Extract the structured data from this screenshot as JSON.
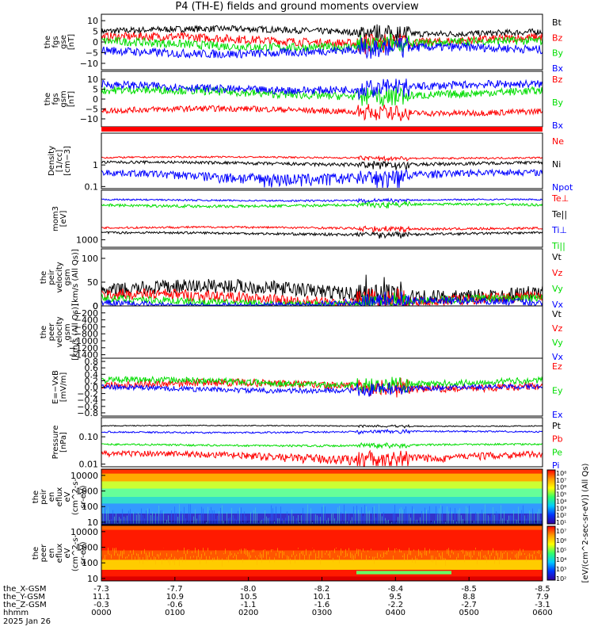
{
  "title": "P4 (TH-E) fields and ground moments overview",
  "colors": {
    "black": "#000000",
    "red": "#ff0000",
    "green": "#00dd00",
    "blue": "#0000ff"
  },
  "chart_data": [
    {
      "type": "line",
      "ylabel": [
        "the",
        "fgs",
        "gse",
        "[nT]"
      ],
      "ylim": [
        -13,
        13
      ],
      "ticks": [
        "10",
        "5",
        "0",
        "−5",
        "−10"
      ],
      "tick_values": [
        10,
        5,
        0,
        -5,
        -10
      ],
      "series": [
        {
          "name": "Bt",
          "color": "#000000",
          "level": 5,
          "noise": 1.5
        },
        {
          "name": "Bz",
          "color": "#ff0000",
          "level": 1,
          "noise": 2
        },
        {
          "name": "By",
          "color": "#00dd00",
          "level": -1,
          "noise": 2
        },
        {
          "name": "Bx",
          "color": "#0000ff",
          "level": -4,
          "noise": 2
        }
      ]
    },
    {
      "type": "line",
      "ylabel": [
        "the",
        "fgs",
        "gsm",
        "[nT]"
      ],
      "ylim": [
        -14,
        14
      ],
      "ticks": [
        "10",
        "5",
        "0",
        "−5",
        "−10"
      ],
      "tick_values": [
        10,
        5,
        0,
        -5,
        -10
      ],
      "series": [
        {
          "name": "Bz",
          "color": "#ff0000",
          "level": -6,
          "noise": 1.5
        },
        {
          "name": "By",
          "color": "#00dd00",
          "level": 3,
          "noise": 2
        },
        {
          "name": "Bx",
          "color": "#0000ff",
          "level": 6,
          "noise": 2
        }
      ]
    },
    {
      "type": "line",
      "ylabel": [
        "Density",
        "[1/cc]",
        "[cm−3]"
      ],
      "yscale": "log",
      "ylim": [
        0.08,
        30
      ],
      "ticks": [
        "1",
        "0.1"
      ],
      "tick_values": [
        1,
        0.1
      ],
      "series": [
        {
          "name": "Ne",
          "color": "#ff0000",
          "level": 2.2,
          "noise": 0.2
        },
        {
          "name": "Ni",
          "color": "#000000",
          "level": 1.2,
          "noise": 0.2
        },
        {
          "name": "Npot",
          "color": "#0000ff",
          "level": 0.35,
          "noise": 0.15
        }
      ]
    },
    {
      "type": "line",
      "ylabel": [
        "mom3",
        "[eV]"
      ],
      "yscale": "log",
      "ylim": [
        500,
        100000
      ],
      "ticks": [
        "1000"
      ],
      "tick_values": [
        1000
      ],
      "series": [
        {
          "name": "Te⊥",
          "color": "#ff0000",
          "level": 3000,
          "noise": 300
        },
        {
          "name": "Te||",
          "color": "#000000",
          "level": 1800,
          "noise": 200
        },
        {
          "name": "Ti⊥",
          "color": "#0000ff",
          "level": 40000,
          "noise": 3000
        },
        {
          "name": "Ti||",
          "color": "#00dd00",
          "level": 25000,
          "noise": 3000
        }
      ]
    },
    {
      "type": "line",
      "ylabel": [
        "the",
        "peir",
        "velocity",
        "gsm",
        "[km/s (All Qs)]"
      ],
      "ylim": [
        0,
        120
      ],
      "ticks": [
        "100",
        "50",
        "0"
      ],
      "tick_values": [
        100,
        50,
        0
      ],
      "series": [
        {
          "name": "Vt",
          "color": "#000000",
          "level": 30,
          "noise": 15
        },
        {
          "name": "Vz",
          "color": "#ff0000",
          "level": 15,
          "noise": 12
        },
        {
          "name": "Vy",
          "color": "#00dd00",
          "level": 10,
          "noise": 8
        },
        {
          "name": "Vx",
          "color": "#0000ff",
          "level": 5,
          "noise": 8
        }
      ]
    },
    {
      "type": "line",
      "ylabel": [
        "the",
        "peer",
        "velocity",
        "gsm",
        "[km/s (All Qs)]"
      ],
      "ylim": [
        -1500,
        0
      ],
      "ticks": [
        "0",
        "−200",
        "−400",
        "−600",
        "−800",
        "−1000",
        "−1200",
        "−1400"
      ],
      "tick_values": [
        0,
        -200,
        -400,
        -600,
        -800,
        -1000,
        -1200,
        -1400
      ],
      "series": [
        {
          "name": "Vt",
          "color": "#000000"
        },
        {
          "name": "Vz",
          "color": "#ff0000"
        },
        {
          "name": "Vy",
          "color": "#00dd00"
        },
        {
          "name": "Vx",
          "color": "#0000ff"
        }
      ]
    },
    {
      "type": "line",
      "ylabel": [
        "E=−VxB",
        "[mV/m]"
      ],
      "ylim": [
        -0.9,
        0.9
      ],
      "ticks": [
        "0.8",
        "0.6",
        "0.4",
        "0.2",
        "0.0",
        "−0.2",
        "−0.4",
        "−0.6",
        "−0.8"
      ],
      "tick_values": [
        0.8,
        0.6,
        0.4,
        0.2,
        0,
        -0.2,
        -0.4,
        -0.6,
        -0.8
      ],
      "series": [
        {
          "name": "Ez",
          "color": "#ff0000",
          "level": 0.05,
          "noise": 0.12
        },
        {
          "name": "Ey",
          "color": "#00dd00",
          "level": 0.15,
          "noise": 0.1
        },
        {
          "name": "Ex",
          "color": "#0000ff",
          "level": -0.05,
          "noise": 0.08
        }
      ]
    },
    {
      "type": "line",
      "ylabel": [
        "Pressure",
        "[nPa]"
      ],
      "yscale": "log",
      "ylim": [
        0.008,
        0.5
      ],
      "ticks": [
        "0.10",
        "0.01"
      ],
      "tick_values": [
        0.1,
        0.01
      ],
      "series": [
        {
          "name": "Pt",
          "color": "#000000",
          "level": 0.25,
          "noise": 0.01
        },
        {
          "name": "Pb",
          "color": "#ff0000",
          "level": 0.02,
          "noise": 0.006
        },
        {
          "name": "Pe",
          "color": "#00dd00",
          "level": 0.05,
          "noise": 0.004
        },
        {
          "name": "Pi",
          "color": "#0000ff",
          "level": 0.15,
          "noise": 0.01
        }
      ]
    },
    {
      "type": "heatmap",
      "ylabel": [
        "the",
        "peir",
        "en",
        "eflux",
        "eV",
        "(cm^2-s-",
        "sr-eV)"
      ],
      "yscale": "log",
      "ylim": [
        7,
        25000
      ],
      "ticks": [
        "10000",
        "1000",
        "100",
        "10"
      ],
      "tick_values": [
        10000,
        1000,
        100,
        10
      ]
    },
    {
      "type": "heatmap",
      "ylabel": [
        "the",
        "peer",
        "en",
        "eflux",
        "eV",
        "(cm^2-s-",
        "sr-eV)"
      ],
      "yscale": "log",
      "ylim": [
        7,
        25000
      ],
      "ticks": [
        "10000",
        "1000",
        "100",
        "10"
      ],
      "tick_values": [
        10000,
        1000,
        100,
        10
      ]
    }
  ],
  "colorbar": {
    "label": "[eV/(cm^2-sec-sr-eV)] (All Qs)",
    "ticks": [
      "10⁸",
      "10⁷",
      "10⁶",
      "10⁵",
      "10⁴",
      "10³",
      "10²",
      "10¹"
    ],
    "ticks2": [
      "10⁷",
      "10⁶",
      "10⁵",
      "10⁴",
      "10³",
      "10²"
    ]
  },
  "xaxis": {
    "rows": [
      {
        "label": "the_X-GSM",
        "values": [
          "-7.3",
          "-7.7",
          "-8.0",
          "-8.2",
          "-8.4",
          "-8.5",
          "-8.5"
        ]
      },
      {
        "label": "the_Y-GSM",
        "values": [
          "11.1",
          "10.9",
          "10.5",
          "10.1",
          "9.5",
          "8.8",
          "7.9"
        ]
      },
      {
        "label": "the_Z-GSM",
        "values": [
          "-0.3",
          "-0.6",
          "-1.1",
          "-1.6",
          "-2.2",
          "-2.7",
          "-3.1"
        ]
      },
      {
        "label": "hhmm",
        "values": [
          "0000",
          "0100",
          "0200",
          "0300",
          "0400",
          "0500",
          "0600"
        ]
      }
    ],
    "date": "2025 Jan 26"
  }
}
